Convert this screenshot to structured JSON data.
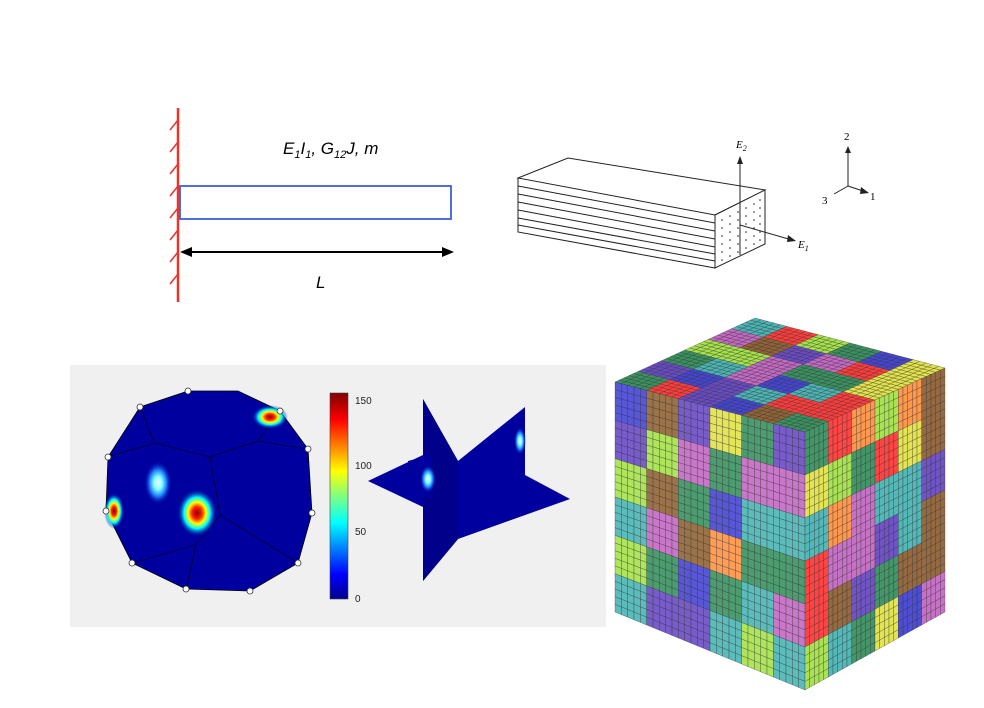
{
  "cantilever": {
    "properties_label": {
      "E": "E",
      "E_sub": "1",
      "I": "I",
      "I_sub": "1",
      "sep1": ", ",
      "G": "G",
      "G_sub": "12",
      "J": "J",
      "sep2": ", ",
      "m": "m"
    },
    "length_label": "L",
    "colors": {
      "wall": "#e8342a",
      "beam": "#3a5fd9",
      "arrow": "#000000"
    }
  },
  "laminate": {
    "axis_E2": {
      "E": "E",
      "sub": "2"
    },
    "axis_E1": {
      "E": "E",
      "sub": "1"
    },
    "triad": {
      "axis_2": "2",
      "axis_1": "1",
      "axis_3": "3"
    }
  },
  "heatmap": {
    "colorbar": {
      "ticks": [
        "150",
        "100",
        "50",
        "0"
      ],
      "min": 0,
      "max": 160,
      "colormap": "jet"
    },
    "background": "#f0f0f0",
    "field_color": "#00009e"
  },
  "voxel_cube": {
    "description_colors": [
      "#2e8b57",
      "#ff3030",
      "#3a3ad0",
      "#c060c0",
      "#40b0b0",
      "#a0e040",
      "#ff8c3a",
      "#8a5a2b",
      "#e0e040",
      "#6040c0"
    ]
  }
}
